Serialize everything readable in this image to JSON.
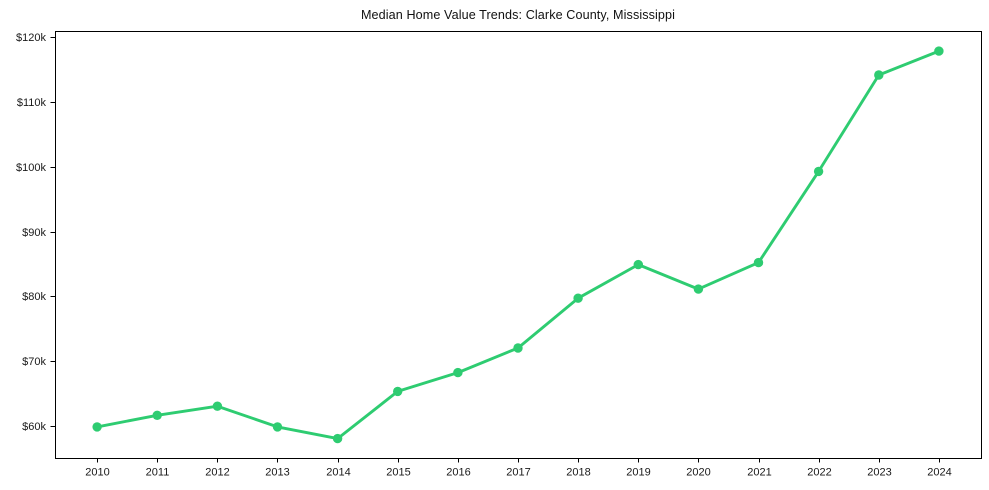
{
  "page": {
    "background_color": "#ffffff",
    "text_color": "#1a1a1a"
  },
  "chart_data": {
    "type": "line",
    "title": "Median Home Value Trends: Clarke County, Mississippi",
    "xlabel": "",
    "ylabel": "",
    "x": [
      2010,
      2011,
      2012,
      2013,
      2014,
      2015,
      2016,
      2017,
      2018,
      2019,
      2020,
      2021,
      2022,
      2023,
      2024
    ],
    "series": [
      {
        "name": "Median Home Value",
        "color": "#2ecc71",
        "values": [
          59800,
          61600,
          63000,
          59800,
          58000,
          65300,
          68200,
          72000,
          79700,
          84900,
          81100,
          85200,
          99300,
          114200,
          117900
        ]
      }
    ],
    "x_tick_labels": [
      "2010",
      "2011",
      "2012",
      "2013",
      "2014",
      "2015",
      "2016",
      "2017",
      "2018",
      "2019",
      "2020",
      "2021",
      "2022",
      "2023",
      "2024"
    ],
    "y_ticks": [
      {
        "value": 60000,
        "label": "$60k"
      },
      {
        "value": 70000,
        "label": "$70k"
      },
      {
        "value": 80000,
        "label": "$80k"
      },
      {
        "value": 90000,
        "label": "$90k"
      },
      {
        "value": 100000,
        "label": "$100k"
      },
      {
        "value": 110000,
        "label": "$110k"
      },
      {
        "value": 120000,
        "label": "$120k"
      }
    ],
    "xlim": [
      2009.3,
      2024.7
    ],
    "ylim": [
      55000,
      121000
    ],
    "grid": false,
    "legend": "none",
    "marker": "circle",
    "axis_color": "#000000"
  }
}
